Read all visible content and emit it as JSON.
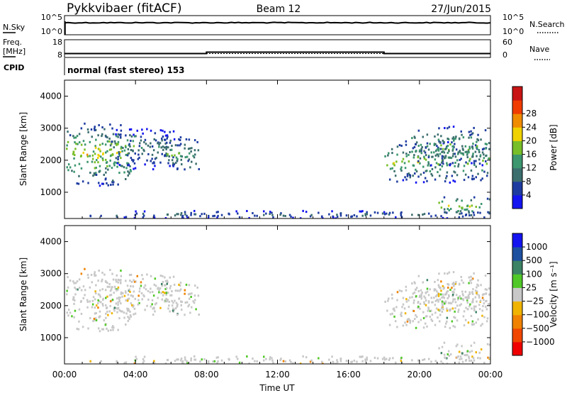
{
  "header": {
    "station": "Pykkvibaer (fitACF)",
    "beam": "Beam 12",
    "date": "27/Jun/2015"
  },
  "strip_panels": {
    "nsky": {
      "left_label": "N.Sky",
      "left_ticks": [
        "10^5",
        "10^0"
      ],
      "right_label": "N.Search",
      "right_ticks": [
        "10^5",
        "10^0"
      ]
    },
    "freq": {
      "left_label_1": "Freq.",
      "left_label_2": "[MHz]",
      "left_ticks": [
        "18",
        "8"
      ],
      "right_label": "Nave",
      "right_ticks": [
        "60",
        "0"
      ],
      "freq_segments": [
        {
          "t_start": 0.0,
          "t_end": 8.0,
          "value_mhz": 10.2
        },
        {
          "t_start": 8.0,
          "t_end": 18.0,
          "value_mhz": 11.0
        },
        {
          "t_start": 18.0,
          "t_end": 24.0,
          "value_mhz": 10.2
        }
      ],
      "nave_level": 13.3
    },
    "cpid": {
      "label": "CPID",
      "text": "normal (fast stereo) 153"
    }
  },
  "x_axis": {
    "label": "Time UT",
    "tick_labels": [
      "00:00",
      "04:00",
      "08:00",
      "12:00",
      "16:00",
      "20:00",
      "00:00"
    ],
    "range_hours": [
      0,
      24
    ]
  },
  "colors": {
    "power": [
      "#1414f0",
      "#1e3ca0",
      "#3c6e6e",
      "#3c966e",
      "#78be28",
      "#f0d200",
      "#f08c00",
      "#f03c00",
      "#c81414"
    ],
    "velocity": [
      "#1414f0",
      "#1e50a0",
      "#3c8264",
      "#50c828",
      "#c8c8c8",
      "#f0b400",
      "#f08200",
      "#f04600",
      "#f00000"
    ]
  },
  "chart_data": [
    {
      "type": "heatmap",
      "title": "",
      "xlabel": "Time UT",
      "ylabel": "Slant Range [km]",
      "x_range": [
        0,
        24
      ],
      "ylim": [
        180,
        4500
      ],
      "y_ticks": [
        "1000",
        "2000",
        "3000",
        "4000"
      ],
      "colorbar": {
        "label": "Power [dB]",
        "tick_labels": [
          "4",
          "8",
          "12",
          "16",
          "20",
          "24",
          "28"
        ],
        "range": [
          0,
          32
        ]
      },
      "echo_regions": [
        {
          "t0": 0.0,
          "t1": 4.0,
          "r0": 1200,
          "r1": 3150,
          "peak_power_db": 26
        },
        {
          "t0": 2.5,
          "t1": 6.6,
          "r0": 1700,
          "r1": 3000,
          "peak_power_db": 14
        },
        {
          "t0": 5.5,
          "t1": 7.6,
          "r0": 1600,
          "r1": 2700,
          "peak_power_db": 18
        },
        {
          "t0": 18.0,
          "t1": 24.0,
          "r0": 1300,
          "r1": 2600,
          "peak_power_db": 22
        },
        {
          "t0": 19.5,
          "t1": 24.0,
          "r0": 1800,
          "r1": 3050,
          "peak_power_db": 20
        },
        {
          "t0": 0.5,
          "t1": 24.0,
          "r0": 180,
          "r1": 420,
          "peak_power_db": 12
        },
        {
          "t0": 21.0,
          "t1": 24.0,
          "r0": 250,
          "r1": 900,
          "peak_power_db": 24
        }
      ]
    },
    {
      "type": "heatmap",
      "title": "",
      "xlabel": "Time UT",
      "ylabel": "Slant Range [km]",
      "x_range": [
        0,
        24
      ],
      "ylim": [
        180,
        4500
      ],
      "y_ticks": [
        "1000",
        "2000",
        "3000",
        "4000"
      ],
      "colorbar": {
        "label": "Velocity [m s⁻¹]",
        "tick_labels": [
          "1000",
          "500",
          "100",
          "25",
          "−25",
          "−100",
          "−500",
          "−1000"
        ]
      },
      "dominant_velocity_ms": "-25 to 25"
    }
  ]
}
